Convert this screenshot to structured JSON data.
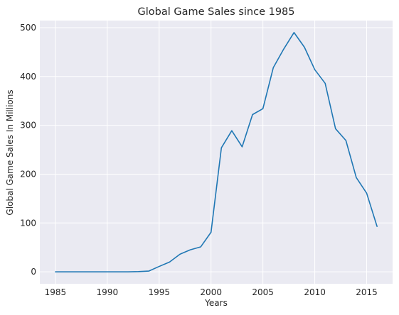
{
  "chart_data": {
    "type": "line",
    "title": "Global Game Sales since 1985",
    "xlabel": "Years",
    "ylabel": "Global Game Sales In Millions",
    "xlim": [
      1983.5,
      2017.5
    ],
    "ylim": [
      -24.5,
      514.5
    ],
    "xticks": [
      1985,
      1990,
      1995,
      2000,
      2005,
      2010,
      2015
    ],
    "yticks": [
      0,
      100,
      200,
      300,
      400,
      500
    ],
    "grid": true,
    "legend": "none",
    "colors": {
      "series": "#1f77b4",
      "plot_background": "#eaeaf2",
      "grid": "#ffffff",
      "text": "#262626"
    },
    "x": [
      1985,
      1986,
      1987,
      1988,
      1989,
      1990,
      1991,
      1992,
      1993,
      1994,
      1995,
      1996,
      1997,
      1998,
      1999,
      2000,
      2001,
      2002,
      2003,
      2004,
      2005,
      2006,
      2007,
      2008,
      2009,
      2010,
      2011,
      2012,
      2013,
      2014,
      2015,
      2016
    ],
    "series": [
      {
        "values": [
          0,
          0,
          0,
          0,
          0,
          0,
          0,
          0,
          0.5,
          1.5,
          11,
          20,
          36,
          45,
          51,
          81,
          254,
          289,
          256,
          322,
          334,
          418,
          456,
          490,
          460,
          414,
          386,
          293,
          269,
          193,
          161,
          93
        ]
      }
    ]
  }
}
